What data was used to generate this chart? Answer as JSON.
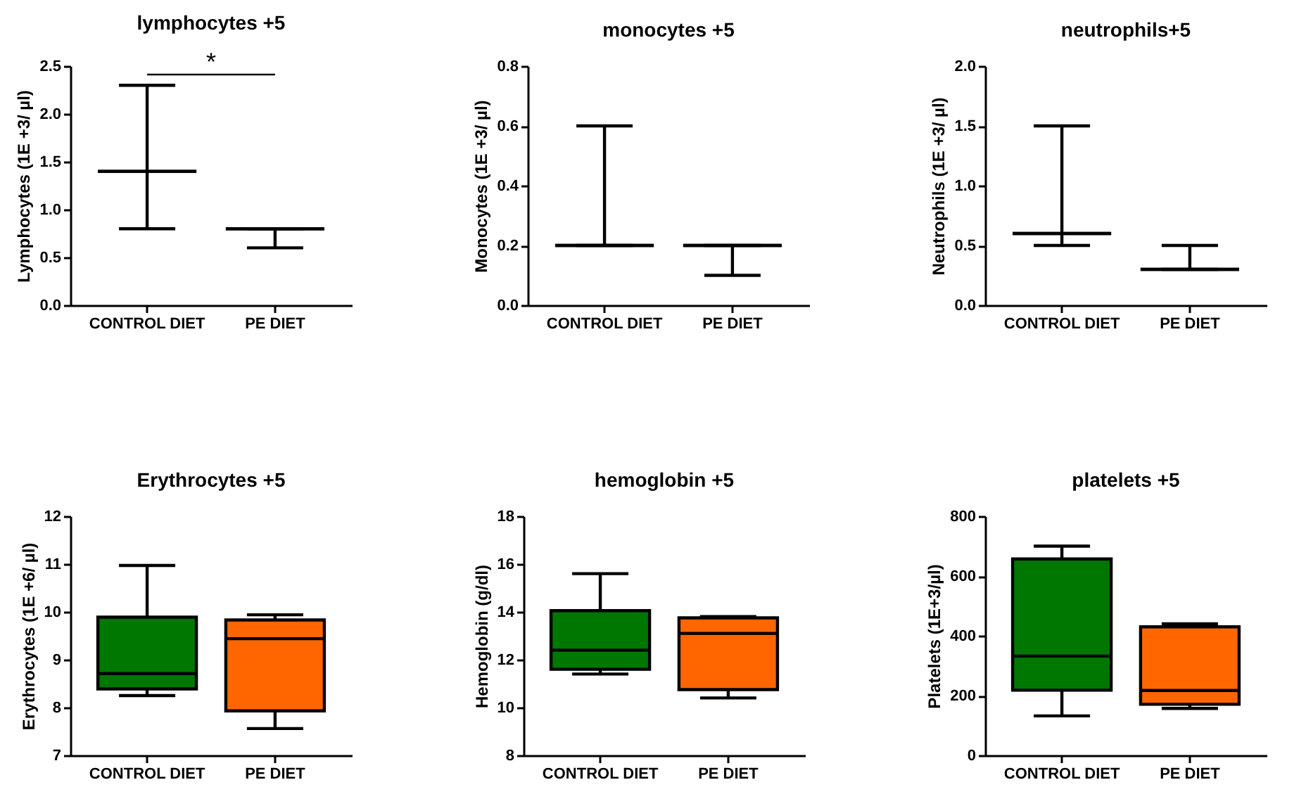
{
  "chart_data": [
    {
      "type": "box",
      "title": "lymphocytes +5",
      "ylabel": "Lymphocytes (1E +3/ µl)",
      "categories": [
        "CONTROL DIET",
        "PE DIET"
      ],
      "boxes": [
        {
          "low": 0.8,
          "q1": 1.4,
          "median": 1.4,
          "q3": 1.4,
          "high": 2.3
        },
        {
          "low": 0.6,
          "q1": 0.8,
          "median": 0.8,
          "q3": 0.8,
          "high": 0.8
        }
      ],
      "ylim": [
        0,
        2.5
      ],
      "yticks": [
        {
          "value": 0,
          "label": "0.0"
        },
        0.5,
        {
          "value": 1,
          "label": "1.0"
        },
        1.5,
        {
          "value": 2,
          "label": "2.0"
        },
        2.5
      ],
      "annotations": [
        "*"
      ],
      "grid": false
    },
    {
      "type": "box",
      "title": "monocytes +5",
      "ylabel": "Monocytes (1E +3/ µl)",
      "categories": [
        "CONTROL DIET",
        "PE DIET"
      ],
      "boxes": [
        {
          "low": 0.2,
          "q1": 0.2,
          "median": 0.2,
          "q3": 0.2,
          "high": 0.6
        },
        {
          "low": 0.1,
          "q1": 0.2,
          "median": 0.2,
          "q3": 0.2,
          "high": 0.2
        }
      ],
      "ylim": [
        0,
        0.8
      ],
      "yticks": [
        {
          "value": 0,
          "label": "0.0"
        },
        0.2,
        0.4,
        0.6,
        0.8
      ],
      "grid": false
    },
    {
      "type": "box",
      "title": "neutrophils+5",
      "ylabel": "Neutrophils (1E +3/ µl)",
      "categories": [
        "CONTROL DIET",
        "PE DIET"
      ],
      "boxes": [
        {
          "low": 0.5,
          "q1": 0.6,
          "median": 0.6,
          "q3": 0.6,
          "high": 1.5
        },
        {
          "low": 0.3,
          "q1": 0.3,
          "median": 0.3,
          "q3": 0.3,
          "high": 0.5
        }
      ],
      "ylim": [
        0,
        2.0
      ],
      "yticks": [
        {
          "value": 0,
          "label": "0.0"
        },
        0.5,
        {
          "value": 1,
          "label": "1.0"
        },
        1.5,
        {
          "value": 2,
          "label": "2.0"
        }
      ],
      "grid": false
    },
    {
      "type": "box",
      "title": "Erythrocytes +5",
      "ylabel": "Erythrocytes (1E +6/ µl)",
      "categories": [
        "CONTROL DIET",
        "PE DIET"
      ],
      "boxes": [
        {
          "low": 8.25,
          "q1": 8.39,
          "median": 8.71,
          "q3": 9.89,
          "high": 10.97
        },
        {
          "low": 7.56,
          "q1": 7.93,
          "median": 9.44,
          "q3": 9.83,
          "high": 9.94
        }
      ],
      "colors": [
        "#007700",
        "#ff6600"
      ],
      "ylim": [
        7,
        12
      ],
      "yticks": [
        7,
        8,
        9,
        10,
        11,
        12
      ],
      "grid": false
    },
    {
      "type": "box",
      "title": "hemoglobin +5",
      "ylabel": "Hemoglobin (g/dl)",
      "categories": [
        "CONTROL DIET",
        "PE DIET"
      ],
      "boxes": [
        {
          "low": 11.4,
          "q1": 11.6,
          "median": 12.4,
          "q3": 14.05,
          "high": 15.6
        },
        {
          "low": 10.4,
          "q1": 10.75,
          "median": 13.1,
          "q3": 13.75,
          "high": 13.8
        }
      ],
      "colors": [
        "#007700",
        "#ff6600"
      ],
      "ylim": [
        8,
        18
      ],
      "yticks": [
        8,
        10,
        12,
        14,
        16,
        18
      ],
      "grid": false
    },
    {
      "type": "box",
      "title": "platelets +5",
      "ylabel": "Platelets (1E+3/µl)",
      "categories": [
        "CONTROL DIET",
        "PE DIET"
      ],
      "boxes": [
        {
          "low": 132,
          "q1": 218,
          "median": 332,
          "q3": 657,
          "high": 700
        },
        {
          "low": 157,
          "q1": 171,
          "median": 217,
          "q3": 430,
          "high": 440
        }
      ],
      "colors": [
        "#007700",
        "#ff6600"
      ],
      "ylim": [
        0,
        800
      ],
      "yticks": [
        0,
        200,
        400,
        600,
        800
      ],
      "grid": false
    }
  ]
}
